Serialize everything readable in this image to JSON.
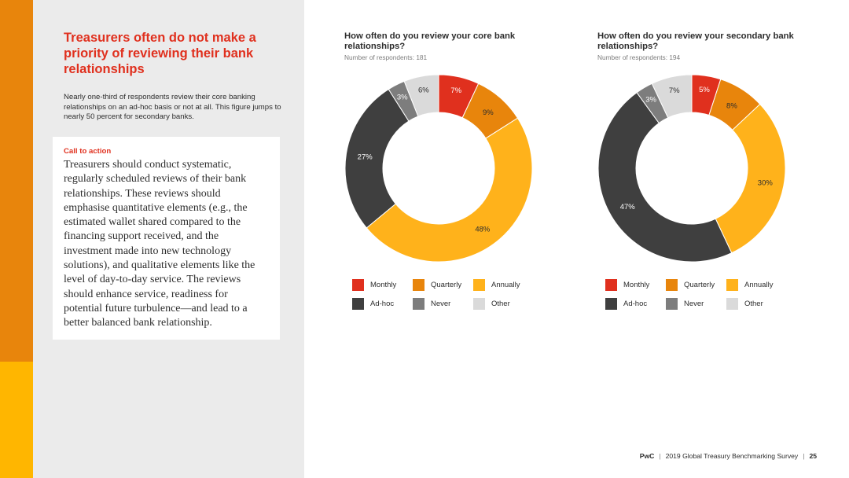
{
  "left": {
    "headline": "Treasurers often do not make a priority of reviewing their bank relationships",
    "intro": "Nearly one-third of respondents review their core banking relationships on an ad-hoc basis or not at all. This figure jumps to nearly 50 percent for secondary banks.",
    "cta_label": "Call to action",
    "cta_body": "Treasurers should conduct systematic, regularly scheduled reviews of their bank relationships. These reviews should emphasise quantitative elements (e.g., the estimated wallet shared compared to the financing support received, and the investment made into new technology solutions), and qualitative elements like the level of day-to-day service. The reviews should enhance service, readiness for potential future turbulence—and lead to a better balanced bank relationship."
  },
  "legend": [
    {
      "name": "Monthly",
      "color": "#e0301e"
    },
    {
      "name": "Quarterly",
      "color": "#e8850c"
    },
    {
      "name": "Annually",
      "color": "#ffb21b"
    },
    {
      "name": "Ad-hoc",
      "color": "#3f3f3f"
    },
    {
      "name": "Never",
      "color": "#7d7d7d"
    },
    {
      "name": "Other",
      "color": "#dadada"
    }
  ],
  "chart_data": [
    {
      "type": "pie",
      "donut": true,
      "title": "How often do you review your core bank relationships?",
      "subtitle": "Number of respondents: 181",
      "categories": [
        "Monthly",
        "Quarterly",
        "Annually",
        "Ad-hoc",
        "Never",
        "Other"
      ],
      "values": [
        7,
        9,
        48,
        27,
        3,
        6
      ],
      "labels": [
        "7%",
        "9%",
        "48%",
        "27%",
        "3%",
        "6%"
      ],
      "legend_position": "bottom"
    },
    {
      "type": "pie",
      "donut": true,
      "title": "How often do you review your secondary bank relationships?",
      "subtitle": "Number of respondents: 194",
      "categories": [
        "Monthly",
        "Quarterly",
        "Annually",
        "Ad-hoc",
        "Never",
        "Other"
      ],
      "values": [
        5,
        8,
        30,
        47,
        3,
        7
      ],
      "labels": [
        "5%",
        "8%",
        "30%",
        "47%",
        "3%",
        "7%"
      ],
      "legend_position": "bottom"
    }
  ],
  "footer": {
    "brand": "PwC",
    "report": "2019 Global Treasury Benchmarking Survey",
    "page": "25"
  }
}
